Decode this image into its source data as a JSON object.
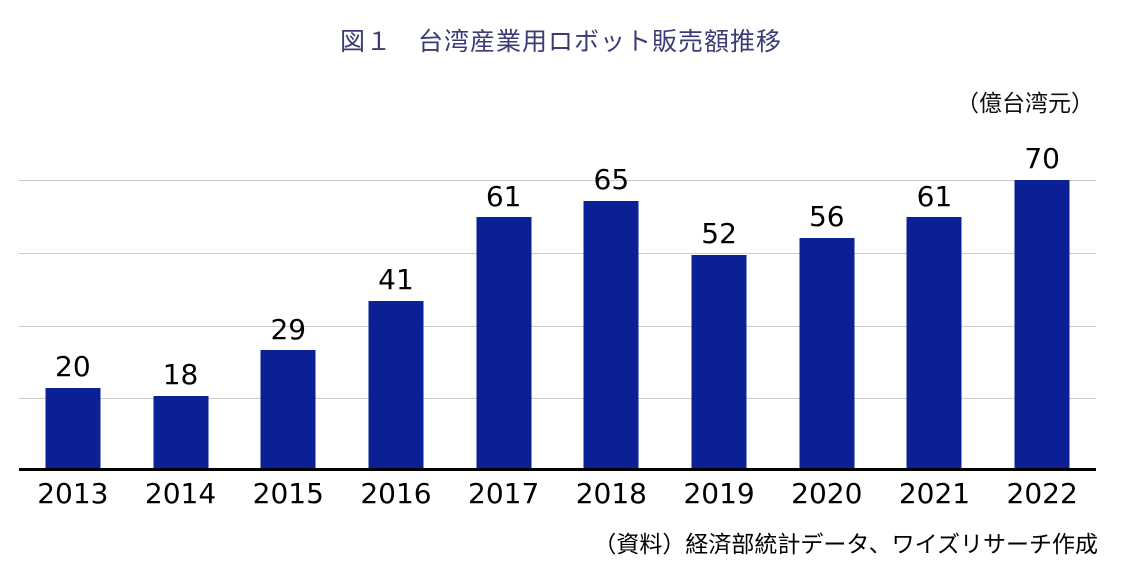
{
  "page": {
    "unit_label": "（億台湾元）",
    "source_note": "（資料）経済部統計データ、ワイズリサーチ作成"
  },
  "colors": {
    "bar": "#0a2094",
    "title_text": "#3b3c76",
    "gridline": "#cbcbcb",
    "axis": "#000000",
    "background": "#ffffff"
  },
  "chart_data": {
    "type": "bar",
    "title": "図１　台湾産業用ロボット販売額推移",
    "unit": "億台湾元",
    "categories": [
      "2013",
      "2014",
      "2015",
      "2016",
      "2017",
      "2018",
      "2019",
      "2020",
      "2021",
      "2022"
    ],
    "values": [
      20,
      18,
      29,
      41,
      61,
      65,
      52,
      56,
      61,
      70
    ],
    "xlabel": "",
    "ylabel": "",
    "ylim": [
      0,
      70
    ],
    "gridline_values": [
      17.5,
      35,
      52.5,
      70
    ],
    "grid": "horizontal",
    "legend": "none",
    "bar_labels": true,
    "source": "（資料）経済部統計データ、ワイズリサーチ作成"
  }
}
